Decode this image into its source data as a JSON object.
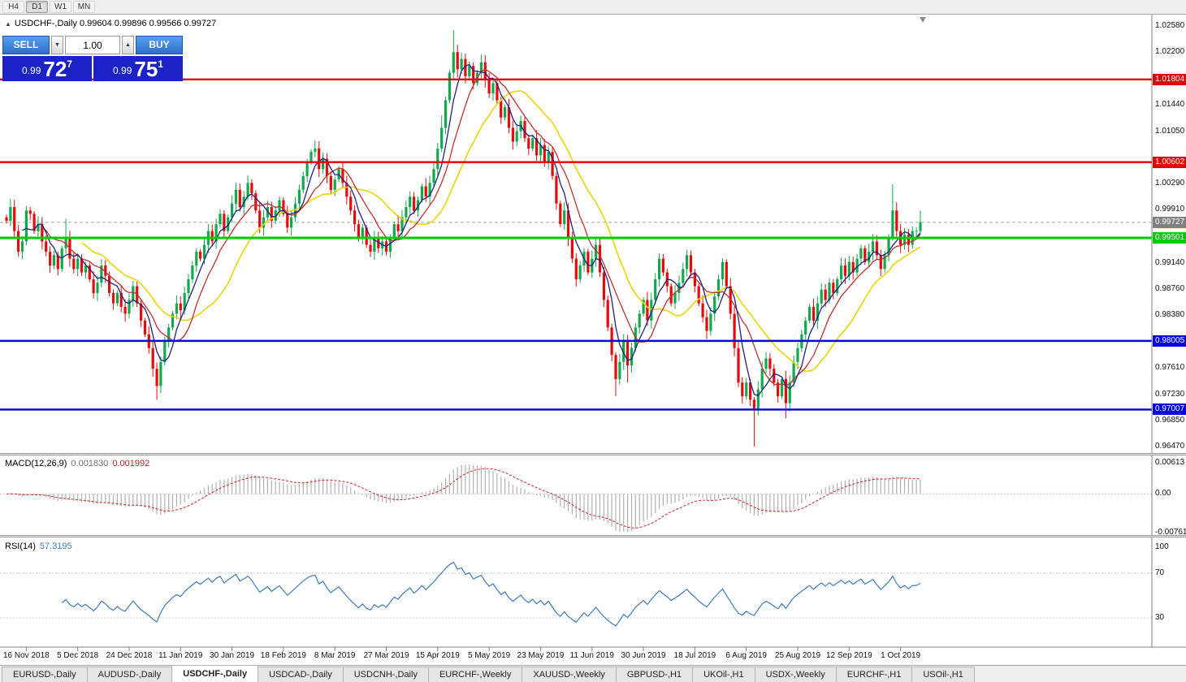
{
  "toolbar": {
    "buttons": [
      {
        "label": "H4",
        "active": false
      },
      {
        "label": "D1",
        "active": true
      },
      {
        "label": "W1",
        "active": false
      },
      {
        "label": "MN",
        "active": false
      }
    ]
  },
  "chart": {
    "title_icon": "▲",
    "title": "USDCHF-,Daily 0.99604 0.99896 0.99566 0.99727"
  },
  "trade_panel": {
    "sell_label": "SELL",
    "buy_label": "BUY",
    "volume_value": "1.00",
    "spinner_down": "▼",
    "spinner_up": "▲",
    "sell_price": {
      "prefix": "0.99",
      "main": "72",
      "pip": "7"
    },
    "buy_price": {
      "prefix": "0.99",
      "main": "75",
      "pip": "1"
    }
  },
  "price_axis": {
    "ticks": [
      "1.02580",
      "1.02200",
      "1.01440",
      "1.01050",
      "1.00290",
      "0.99910",
      "0.99140",
      "0.98760",
      "0.98380",
      "0.97610",
      "0.97230",
      "0.96850",
      "0.96470"
    ],
    "current_price": {
      "label": "0.99727",
      "value": 0.99727,
      "bg": "#808080"
    }
  },
  "hlines": [
    {
      "label": "1.01804",
      "price": 1.01804,
      "color": "#E00000",
      "width": 2.4
    },
    {
      "label": "1.00602",
      "price": 1.00602,
      "color": "#E00000",
      "width": 2.4
    },
    {
      "label": "0.99501",
      "price": 0.99501,
      "color": "#00CC00",
      "width": 3
    },
    {
      "label": "0.98005",
      "price": 0.98005,
      "color": "#0000E0",
      "width": 2.4
    },
    {
      "label": "0.97007",
      "price": 0.97007,
      "color": "#0000E0",
      "width": 2.4
    }
  ],
  "macd_panel": {
    "label": "MACD(12,26,9)",
    "value_main": "0.001830",
    "value_signal": "0.001992",
    "axis": [
      "0.00613",
      "0.00",
      "-0.00761"
    ],
    "histogram_color": "#B0B0B0",
    "signal_color": "#CC2222"
  },
  "rsi_panel": {
    "label": "RSI(14)",
    "value": "57.3195",
    "axis_labels": [
      "100",
      "70",
      "30"
    ],
    "levels": [
      70,
      30
    ],
    "line_color": "#3E7BC0"
  },
  "date_axis": {
    "labels": [
      "16 Nov 2018",
      "5 Dec 2018",
      "24 Dec 2018",
      "11 Jan 2019",
      "30 Jan 2019",
      "18 Feb 2019",
      "8 Mar 2019",
      "27 Mar 2019",
      "15 Apr 2019",
      "5 May 2019",
      "23 May 2019",
      "11 Jun 2019",
      "30 Jun 2019",
      "18 Jul 2019",
      "6 Aug 2019",
      "25 Aug 2019",
      "12 Sep 2019",
      "1 Oct 2019"
    ],
    "first_candle_index": 5,
    "index_step": 13
  },
  "tabs": {
    "active_index": 2,
    "items": [
      "EURUSD-,Daily",
      "AUDUSD-,Daily",
      "USDCHF-,Daily",
      "USDCAD-,Daily",
      "USDCNH-,Daily",
      "EURCHF-,Weekly",
      "XAUUSD-,Weekly",
      "GBPUSD-,H1",
      "UKOil-,H1",
      "USDX-,Weekly",
      "EURCHF-,H1",
      "USOil-,H1"
    ],
    "note": ""
  },
  "chart_data": {
    "type": "candlestick",
    "symbol": "USDCHF",
    "timeframe": "Daily",
    "ohlc_display": {
      "open": "0.99604",
      "high": "0.99896",
      "low": "0.99566",
      "close": "0.99727"
    },
    "y_axis": {
      "max": 1.0258,
      "min": 0.9647
    },
    "macd_axis": {
      "max": 0.00613,
      "min": -0.00761
    },
    "up_color": "#11A850",
    "down_color": "#E40B0B",
    "first_open": 0.998,
    "ma": [
      {
        "period": 20,
        "color": "#E8D40A",
        "width": 1.6
      },
      {
        "period": 10,
        "color": "#C03030",
        "width": 1.3
      },
      {
        "period": 5,
        "color": "#202080",
        "width": 1.3
      }
    ],
    "closes": [
      0.9975,
      0.9995,
      0.996,
      0.993,
      0.9945,
      0.999,
      0.9985,
      0.996,
      0.997,
      0.9945,
      0.993,
      0.991,
      0.9925,
      0.9905,
      0.9935,
      0.995,
      0.992,
      0.9905,
      0.992,
      0.99,
      0.991,
      0.989,
      0.987,
      0.9885,
      0.991,
      0.9895,
      0.987,
      0.9855,
      0.987,
      0.985,
      0.984,
      0.986,
      0.988,
      0.9855,
      0.983,
      0.981,
      0.979,
      0.976,
      0.9735,
      0.977,
      0.98,
      0.982,
      0.984,
      0.9855,
      0.9845,
      0.987,
      0.989,
      0.991,
      0.993,
      0.992,
      0.994,
      0.996,
      0.9945,
      0.997,
      0.9985,
      0.996,
      0.998,
      1.0,
      1.002,
      0.9995,
      1.001,
      1.003,
      1.0015,
      0.999,
      0.9965,
      0.998,
      0.9995,
      0.9975,
      0.999,
      1.0005,
      0.9985,
      0.9965,
      0.998,
      1.0,
      1.002,
      1.004,
      1.006,
      1.0075,
      1.008,
      1.005,
      1.0065,
      1.004,
      1.002,
      1.0035,
      1.005,
      1.003,
      1.001,
      0.999,
      0.997,
      0.995,
      0.9965,
      0.994,
      0.993,
      0.995,
      0.9935,
      0.9945,
      0.993,
      0.995,
      0.997,
      0.996,
      0.998,
      0.9995,
      1.001,
      0.999,
      1.0005,
      1.0025,
      1.001,
      1.003,
      1.005,
      1.008,
      1.011,
      1.015,
      1.019,
      1.022,
      1.0195,
      1.021,
      1.0185,
      1.02,
      1.0175,
      1.019,
      1.0205,
      1.018,
      1.016,
      1.0175,
      1.015,
      1.0125,
      1.014,
      1.011,
      1.009,
      1.0105,
      1.012,
      1.0095,
      1.008,
      1.0095,
      1.007,
      1.0085,
      1.006,
      1.0075,
      1.004,
      1.0,
      0.997,
      0.999,
      0.995,
      0.992,
      0.989,
      0.991,
      0.993,
      0.99,
      0.992,
      0.994,
      0.99,
      0.986,
      0.982,
      0.978,
      0.9745,
      0.977,
      0.98,
      0.9765,
      0.979,
      0.982,
      0.984,
      0.986,
      0.983,
      0.986,
      0.989,
      0.992,
      0.99,
      0.988,
      0.9855,
      0.987,
      0.9885,
      0.9905,
      0.9925,
      0.99,
      0.988,
      0.9855,
      0.9835,
      0.9815,
      0.984,
      0.9865,
      0.989,
      0.9915,
      0.988,
      0.984,
      0.979,
      0.974,
      0.972,
      0.974,
      0.9715,
      0.97,
      0.973,
      0.976,
      0.9775,
      0.976,
      0.974,
      0.972,
      0.9745,
      0.971,
      0.974,
      0.977,
      0.979,
      0.981,
      0.983,
      0.985,
      0.983,
      0.9855,
      0.9875,
      0.986,
      0.9885,
      0.987,
      0.989,
      0.991,
      0.9895,
      0.9915,
      0.99,
      0.992,
      0.9935,
      0.9915,
      0.993,
      0.9945,
      0.9925,
      0.9905,
      0.9925,
      0.995,
      0.999,
      0.996,
      0.994,
      0.9955,
      0.994,
      0.996,
      0.996,
      0.9973
    ],
    "wick_overrides": {
      "15": [
        0.9978,
        null
      ],
      "38": [
        null,
        0.9715
      ],
      "61": [
        1.0041,
        null
      ],
      "78": [
        1.0092,
        null
      ],
      "110": [
        1.0128,
        null
      ],
      "113": [
        1.0252,
        null
      ],
      "154": [
        null,
        0.972
      ],
      "157": [
        null,
        0.974
      ],
      "189": [
        null,
        0.9647
      ],
      "197": [
        null,
        0.9688
      ],
      "224": [
        1.0028,
        null
      ],
      "231": [
        0.999,
        0.9957
      ]
    }
  }
}
